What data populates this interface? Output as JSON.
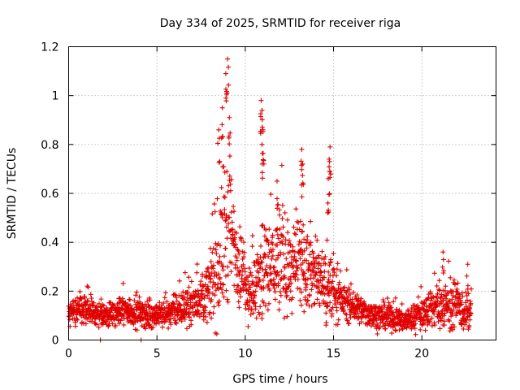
{
  "chart_data": {
    "type": "scatter",
    "title": "Day 334 of 2025, SRMTID for receiver riga",
    "xlabel": "GPS time / hours",
    "ylabel": "SRMTID / TECUs",
    "xlim": [
      0,
      24.2
    ],
    "ylim": [
      0,
      1.2
    ],
    "x_ticks": [
      0,
      5,
      10,
      15,
      20
    ],
    "x_tick_labels": [
      "0",
      "5",
      "10",
      "15",
      "20"
    ],
    "y_ticks": [
      0,
      0.2,
      0.4,
      0.6,
      0.8,
      1.0,
      1.2
    ],
    "y_tick_labels": [
      "0",
      "0.2",
      "0.4",
      "0.6",
      "0.8",
      "1",
      "1.2"
    ],
    "grid": true,
    "marker": "plus",
    "color": "#e00000",
    "series": [
      {
        "name": "SRMTID",
        "profile_hours": [
          0,
          0.5,
          1,
          1.5,
          2,
          2.5,
          3,
          3.5,
          4,
          4.5,
          5,
          5.5,
          6,
          6.5,
          7,
          7.5,
          8,
          8.5,
          9,
          9.5,
          10,
          10.5,
          11,
          11.5,
          12,
          12.5,
          13,
          13.5,
          14,
          14.5,
          15,
          15.5,
          16,
          16.5,
          17,
          17.5,
          18,
          18.5,
          19,
          19.5,
          20,
          20.5,
          21,
          21.5,
          22,
          22.5,
          22.8
        ],
        "profile_typical": [
          0.11,
          0.12,
          0.12,
          0.11,
          0.1,
          0.1,
          0.12,
          0.12,
          0.11,
          0.1,
          0.1,
          0.11,
          0.12,
          0.13,
          0.15,
          0.17,
          0.21,
          0.32,
          0.48,
          0.35,
          0.22,
          0.2,
          0.28,
          0.3,
          0.33,
          0.28,
          0.3,
          0.28,
          0.27,
          0.22,
          0.2,
          0.16,
          0.14,
          0.12,
          0.11,
          0.1,
          0.09,
          0.09,
          0.08,
          0.09,
          0.11,
          0.13,
          0.14,
          0.15,
          0.14,
          0.1,
          0.12
        ],
        "profile_spread": [
          0.06,
          0.08,
          0.08,
          0.06,
          0.05,
          0.06,
          0.07,
          0.07,
          0.06,
          0.06,
          0.05,
          0.06,
          0.07,
          0.08,
          0.09,
          0.1,
          0.14,
          0.3,
          0.4,
          0.22,
          0.15,
          0.14,
          0.3,
          0.2,
          0.25,
          0.18,
          0.25,
          0.18,
          0.16,
          0.2,
          0.12,
          0.08,
          0.08,
          0.06,
          0.06,
          0.06,
          0.06,
          0.06,
          0.05,
          0.06,
          0.07,
          0.09,
          0.11,
          0.11,
          0.1,
          0.07,
          0.09
        ],
        "peaks": [
          {
            "x": 9.0,
            "y": 1.15
          },
          {
            "x": 8.9,
            "y": 1.09
          },
          {
            "x": 8.7,
            "y": 0.95
          },
          {
            "x": 9.1,
            "y": 0.91
          },
          {
            "x": 8.5,
            "y": 0.86
          },
          {
            "x": 10.9,
            "y": 0.98
          },
          {
            "x": 10.95,
            "y": 0.94
          },
          {
            "x": 11.0,
            "y": 0.86
          },
          {
            "x": 10.95,
            "y": 0.8
          },
          {
            "x": 13.2,
            "y": 0.78
          },
          {
            "x": 13.25,
            "y": 0.72
          },
          {
            "x": 14.8,
            "y": 0.79
          },
          {
            "x": 14.75,
            "y": 0.74
          },
          {
            "x": 14.7,
            "y": 0.66
          },
          {
            "x": 11.8,
            "y": 0.65
          },
          {
            "x": 21.2,
            "y": 0.36
          },
          {
            "x": 22.6,
            "y": 0.31
          },
          {
            "x": 1.8,
            "y": 0.0
          },
          {
            "x": 4.1,
            "y": 0.0
          }
        ]
      }
    ]
  }
}
